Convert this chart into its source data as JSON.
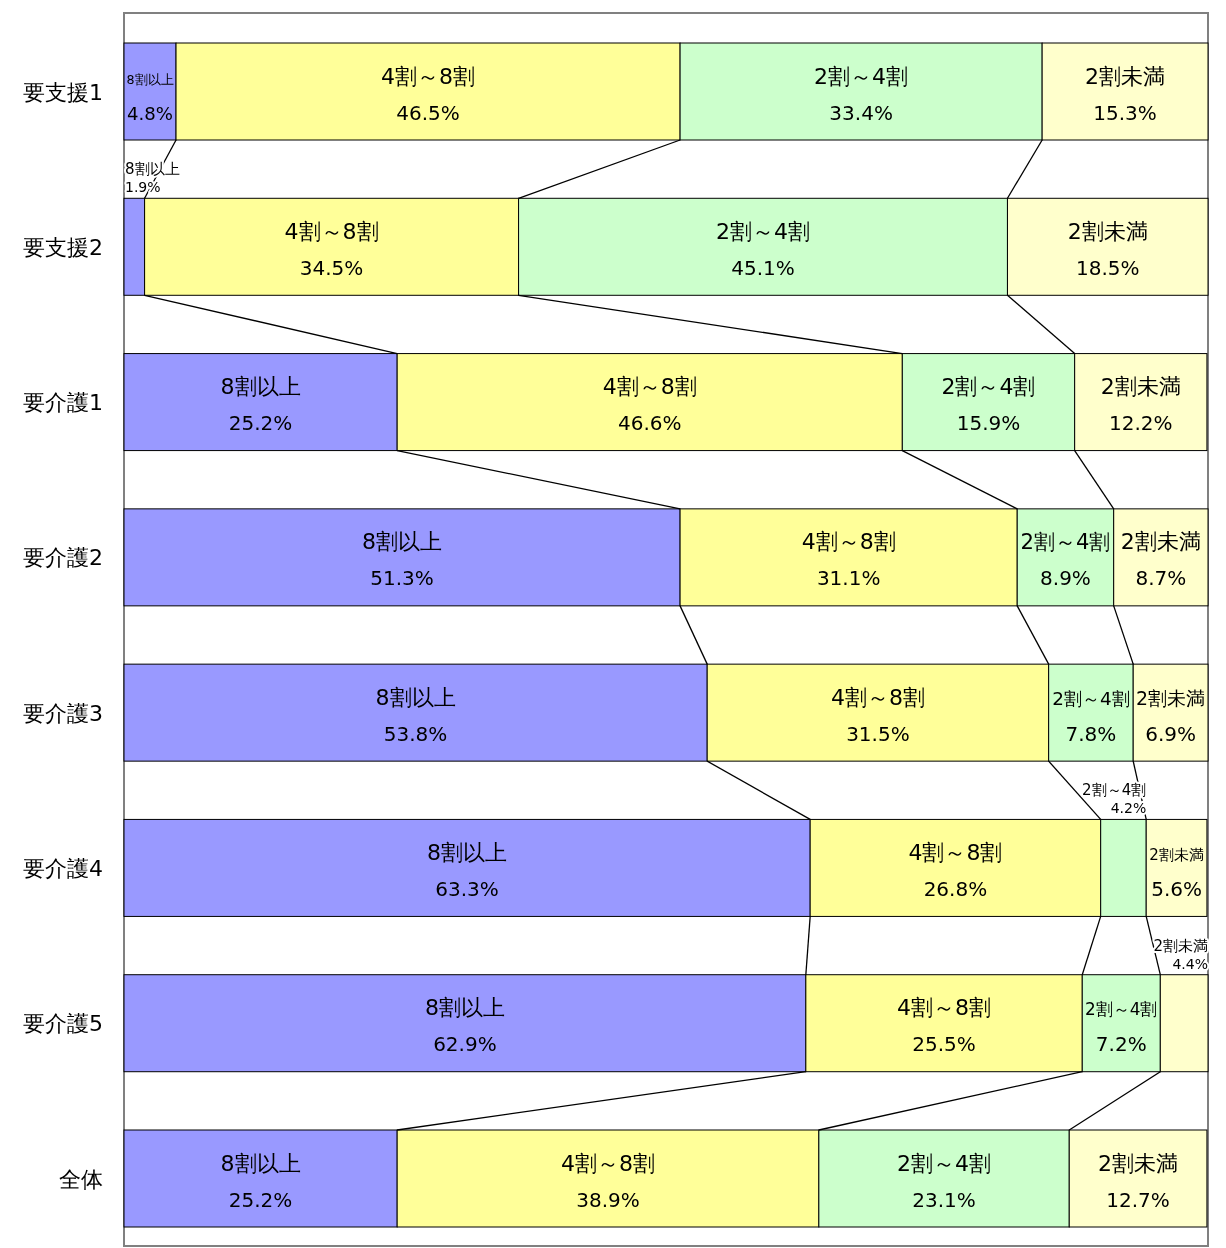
{
  "chart_data": {
    "type": "bar",
    "orientation": "horizontal",
    "stacked": true,
    "xlim": [
      0,
      100
    ],
    "tick_labels": "y",
    "categories": [
      "要支援1",
      "要支援2",
      "要介護1",
      "要介護2",
      "要介護3",
      "要介護4",
      "要介護5",
      "全体"
    ],
    "series": [
      {
        "name": "8割以上",
        "color": "#9999ff",
        "values": [
          4.8,
          1.9,
          25.2,
          51.3,
          53.8,
          63.3,
          62.9,
          25.2
        ],
        "value_labels": [
          "4.8%",
          "1.9%",
          "25.2%",
          "51.3%",
          "53.8%",
          "63.3%",
          "62.9%",
          "25.2%"
        ]
      },
      {
        "name": "4割～8割",
        "color": "#ffff99",
        "values": [
          46.5,
          34.5,
          46.6,
          31.1,
          31.5,
          26.8,
          25.5,
          38.9
        ],
        "value_labels": [
          "46.5%",
          "34.5%",
          "46.6%",
          "31.1%",
          "31.5%",
          "26.8%",
          "25.5%",
          "38.9%"
        ]
      },
      {
        "name": "2割～4割",
        "color": "#ccffcc",
        "values": [
          33.4,
          45.1,
          15.9,
          8.9,
          7.8,
          4.2,
          7.2,
          23.1
        ],
        "value_labels": [
          "33.4%",
          "45.1%",
          "15.9%",
          "8.9%",
          "7.8%",
          "4.2%",
          "7.2%",
          "23.1%"
        ]
      },
      {
        "name": "2割未満",
        "color": "#ffffcc",
        "values": [
          15.3,
          18.5,
          12.2,
          8.7,
          6.9,
          5.6,
          4.4,
          12.7
        ],
        "value_labels": [
          "15.3%",
          "18.5%",
          "12.2%",
          "8.7%",
          "6.9%",
          "5.6%",
          "4.4%",
          "12.7%"
        ]
      }
    ]
  }
}
